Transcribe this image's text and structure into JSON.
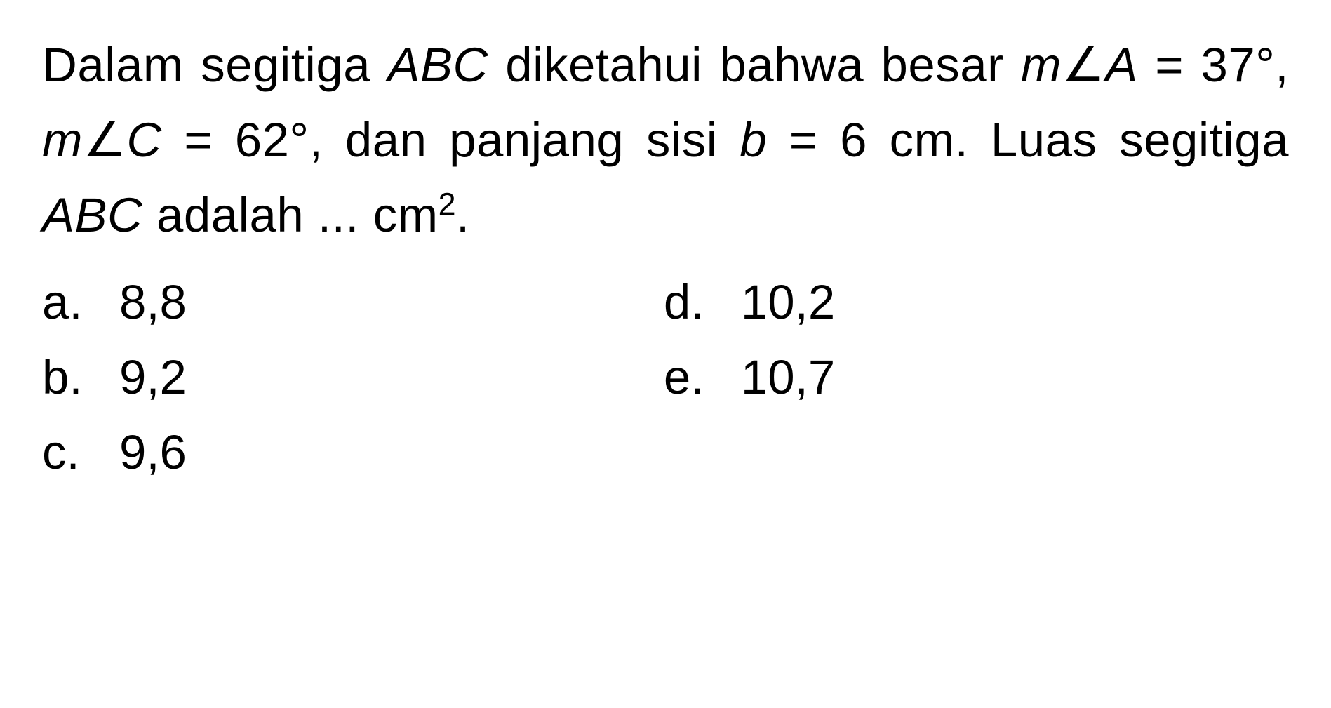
{
  "problem": {
    "line1_part1": "Dalam segitiga ",
    "triangle_name": "ABC",
    "line1_part2": " diketahui bahwa",
    "line2_part1": "besar ",
    "angle_m1": "m",
    "angle_symbol": "∠",
    "angle_A": "A",
    "equals1": " = 37°, ",
    "angle_m2": "m",
    "angle_C": "C",
    "equals2": " = 62°, dan",
    "line3_part1": "panjang sisi ",
    "var_b": "b",
    "line3_part2": " = 6 cm. Luas segitiga",
    "line4_part1": "ABC",
    "line4_part2": " adalah ... cm",
    "exponent": "2",
    "period": "."
  },
  "options": {
    "left": [
      {
        "letter": "a.",
        "value": "8,8"
      },
      {
        "letter": "b.",
        "value": "9,2"
      },
      {
        "letter": "c.",
        "value": "9,6"
      }
    ],
    "right": [
      {
        "letter": "d.",
        "value": "10,2"
      },
      {
        "letter": "e.",
        "value": "10,7"
      }
    ]
  },
  "styling": {
    "font_size_pt": 52,
    "text_color": "#000000",
    "background_color": "#ffffff",
    "line_height": 1.55,
    "font_family": "Arial"
  }
}
